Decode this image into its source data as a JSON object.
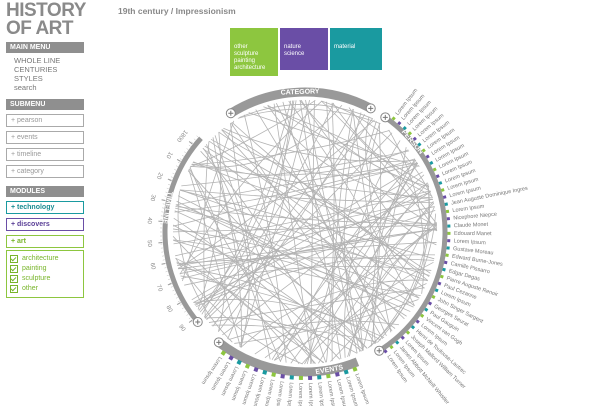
{
  "sidebar": {
    "title": [
      "HISTORY",
      "OF ART"
    ],
    "main_menu": {
      "header": "MAIN MENU",
      "items": [
        "WHOLE LINE",
        "CENTURIES",
        "STYLES",
        "search"
      ]
    },
    "submenu": {
      "header": "SUBMENU",
      "items": [
        "+ pearson",
        "+ events",
        "+ timeline",
        "+ category"
      ]
    },
    "modules": {
      "header": "MODULES",
      "items": [
        "+ technology",
        "+ discovers",
        "+ art"
      ],
      "art_options": [
        "architecture",
        "painting",
        "sculpture",
        "other"
      ]
    }
  },
  "breadcrumb": "19th century / Impressionism",
  "wheel": {
    "category": {
      "label": "CATEGORY",
      "tabs": [
        {
          "lines": [
            "other",
            "sculpture",
            "painting",
            "architecture"
          ]
        },
        {
          "lines": [
            "nature",
            "science"
          ]
        },
        {
          "lines": [
            "material"
          ]
        }
      ]
    },
    "person": {
      "label": "PERSON",
      "names": [
        "Lorem Ipsum",
        "Lorem Ipsum",
        "Lorem Ipsum",
        "Lorem Ipsum",
        "Lorem Ipsum",
        "Lorem Ipsum",
        "Lorem Ipsum",
        "Lorem Ipsum",
        "Lorem Ipsum",
        "Lorem Ipsum",
        "Lorem Ipsum",
        "Lorem Ipsum",
        "Lorem Ipsum",
        "Lorem Ipsum",
        "Jean Auguste Dominique Ingres",
        "Lorem Ipsum",
        "Nicephore Niepce",
        "Claude Monet",
        "Edouard Manet",
        "Lorem Ipsum",
        "Gustave Moreau",
        "Edward Burne-Jones",
        "Camille Pissarro",
        "Edgar Degas",
        "Pierre Auguste Renoir",
        "Paul Cezanne",
        "Lorem Ipsum",
        "John Singer Sargent",
        "Georges Seurat",
        "Paul Gauguin",
        "Vincent van Gogh",
        "Lorem Ipsum",
        "Henri de Toulouse-Lautrec",
        "Joseph Mallord William Turner",
        "Lorem Ipsum",
        "James Abbott McNeill Whistler",
        "Lorem Ipsum",
        "Lorem Ipsum"
      ]
    },
    "events": {
      "label": "EVENTS",
      "names": [
        "Lorem Ipsum",
        "Lorem Ipsum",
        "Lorem Ipsum",
        "Lorem Ipsum",
        "Lorem Ipsum",
        "Lorem Ipsum",
        "Lorem Ipsum",
        "Lorem Ipsum",
        "Lorem Ipsum",
        "Lorem Ipsum",
        "Lorem Ipsum",
        "Lorem Ipsum",
        "Lorem Ipsum",
        "Lorem Ipsum",
        "Lorem Ipsum",
        "Lorem Ipsum"
      ]
    },
    "timeline": {
      "label": "TIMELINE",
      "years": [
        "1800",
        "10",
        "20",
        "30",
        "40",
        "50",
        "60",
        "70",
        "80",
        "90"
      ]
    }
  }
}
